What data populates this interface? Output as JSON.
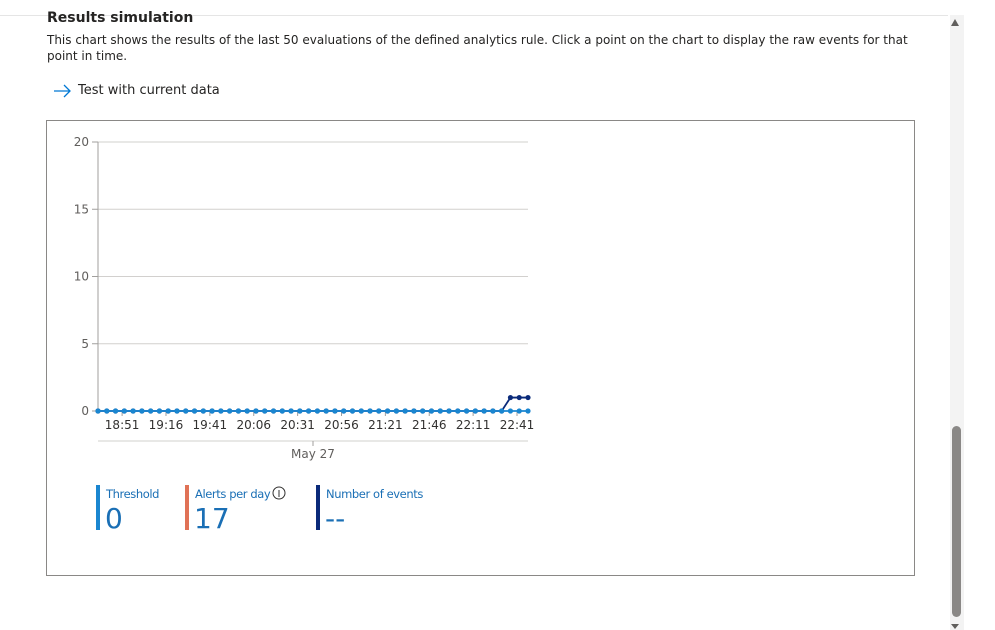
{
  "header": {
    "title": "Results simulation",
    "description": "This chart shows the results of the last 50 evaluations of the defined analytics rule. Click a point on the chart to display the raw events for that point in time.",
    "link": "Test with current data"
  },
  "chart_data": {
    "type": "line",
    "categories": [
      null,
      null,
      null,
      null,
      "18:51",
      null,
      null,
      null,
      null,
      "19:16",
      null,
      null,
      null,
      null,
      "19:41",
      null,
      null,
      null,
      null,
      "20:06",
      null,
      null,
      null,
      null,
      "20:31",
      null,
      null,
      null,
      null,
      "20:56",
      null,
      null,
      null,
      null,
      "21:21",
      null,
      null,
      null,
      null,
      "21:46",
      null,
      null,
      null,
      null,
      "22:11",
      null,
      null,
      null,
      null,
      "22:41"
    ],
    "series": [
      {
        "name": "Threshold",
        "color": "#1a86d0",
        "values": [
          0,
          0,
          0,
          0,
          0,
          0,
          0,
          0,
          0,
          0,
          0,
          0,
          0,
          0,
          0,
          0,
          0,
          0,
          0,
          0,
          0,
          0,
          0,
          0,
          0,
          0,
          0,
          0,
          0,
          0,
          0,
          0,
          0,
          0,
          0,
          0,
          0,
          0,
          0,
          0,
          0,
          0,
          0,
          0,
          0,
          0,
          0,
          0,
          0,
          0
        ]
      },
      {
        "name": "Number of events",
        "color": "#0a2a7a",
        "values": [
          0,
          0,
          0,
          0,
          0,
          0,
          0,
          0,
          0,
          0,
          0,
          0,
          0,
          0,
          0,
          0,
          0,
          0,
          0,
          0,
          0,
          0,
          0,
          0,
          0,
          0,
          0,
          0,
          0,
          0,
          0,
          0,
          0,
          0,
          0,
          0,
          0,
          0,
          0,
          0,
          0,
          0,
          0,
          0,
          0,
          0,
          0,
          1,
          1,
          1
        ]
      }
    ],
    "xlabel": "May 27",
    "ylim": [
      0,
      20
    ],
    "yticks": [
      0,
      5,
      10,
      15,
      20
    ],
    "grid": true
  },
  "stats": [
    {
      "label": "Threshold",
      "value": 0,
      "color": "#1a86d0"
    },
    {
      "label": "Alerts per day",
      "value": 17,
      "color": "#e07256"
    },
    {
      "label": "Number of events",
      "value": "--",
      "color": "#0a2a7a"
    }
  ]
}
